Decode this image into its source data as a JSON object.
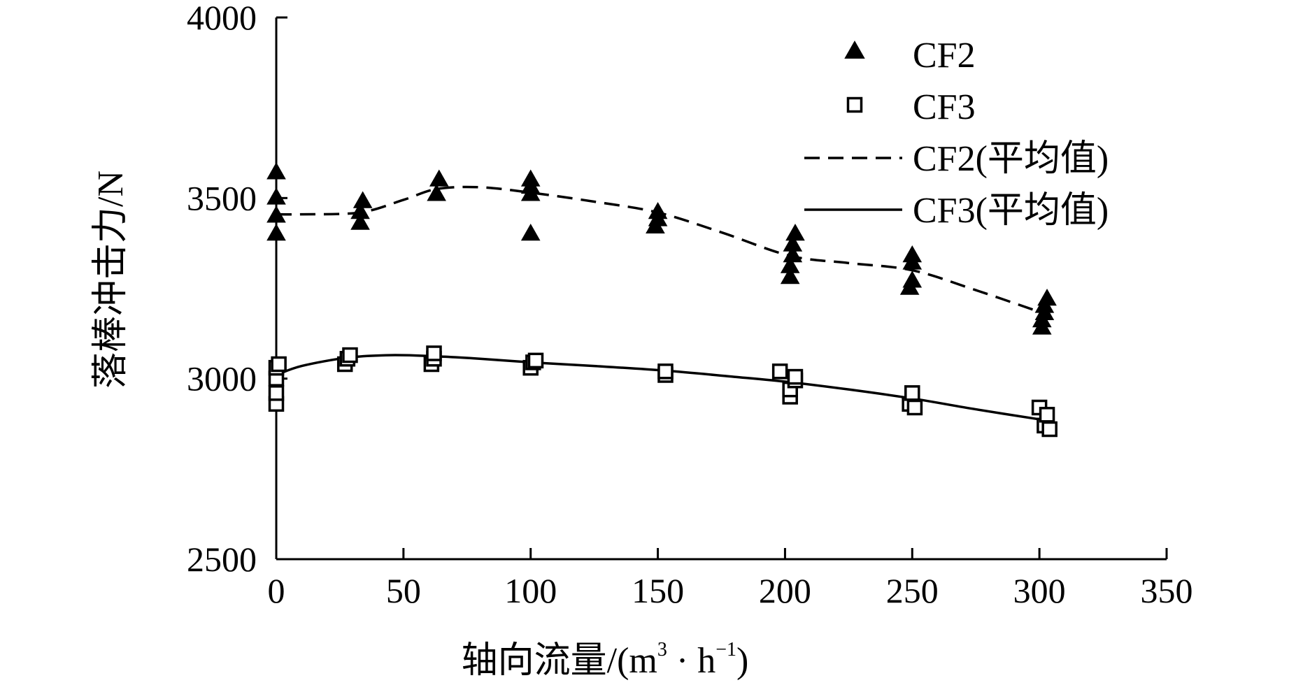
{
  "chart_data": {
    "type": "scatter",
    "title": "",
    "xlabel": "轴向流量/(m",
    "xlabel_sup1": "3",
    "xlabel_mid": " · h",
    "xlabel_sup2": "−1",
    "xlabel_end": ")",
    "ylabel": "落棒冲击力/N",
    "xlim": [
      0,
      350
    ],
    "ylim": [
      2500,
      4000
    ],
    "xticks": [
      0,
      50,
      100,
      150,
      200,
      250,
      300,
      350
    ],
    "yticks": [
      2500,
      3000,
      3500,
      4000
    ],
    "grid": false,
    "legend_position": "top-right",
    "series": [
      {
        "name": "CF2",
        "kind": "scatter",
        "marker": "triangle",
        "points": [
          [
            0,
            3400
          ],
          [
            0,
            3450
          ],
          [
            0,
            3500
          ],
          [
            0,
            3570
          ],
          [
            33,
            3430
          ],
          [
            33,
            3460
          ],
          [
            34,
            3490
          ],
          [
            63,
            3510
          ],
          [
            64,
            3550
          ],
          [
            100,
            3400
          ],
          [
            100,
            3510
          ],
          [
            100,
            3530
          ],
          [
            100,
            3550
          ],
          [
            149,
            3420
          ],
          [
            150,
            3440
          ],
          [
            150,
            3460
          ],
          [
            202,
            3280
          ],
          [
            202,
            3310
          ],
          [
            203,
            3340
          ],
          [
            203,
            3370
          ],
          [
            204,
            3400
          ],
          [
            249,
            3250
          ],
          [
            250,
            3270
          ],
          [
            250,
            3320
          ],
          [
            250,
            3340
          ],
          [
            301,
            3140
          ],
          [
            301,
            3160
          ],
          [
            302,
            3180
          ],
          [
            302,
            3200
          ],
          [
            303,
            3220
          ]
        ]
      },
      {
        "name": "CF3",
        "kind": "scatter",
        "marker": "square-open",
        "points": [
          [
            0,
            2930
          ],
          [
            0,
            2960
          ],
          [
            0,
            3000
          ],
          [
            0,
            3030
          ],
          [
            1,
            3040
          ],
          [
            27,
            3040
          ],
          [
            28,
            3055
          ],
          [
            29,
            3065
          ],
          [
            61,
            3040
          ],
          [
            62,
            3055
          ],
          [
            62,
            3070
          ],
          [
            100,
            3030
          ],
          [
            101,
            3045
          ],
          [
            102,
            3050
          ],
          [
            153,
            3010
          ],
          [
            153,
            3020
          ],
          [
            198,
            3020
          ],
          [
            202,
            2950
          ],
          [
            202,
            2970
          ],
          [
            204,
            2995
          ],
          [
            204,
            3005
          ],
          [
            249,
            2930
          ],
          [
            250,
            2960
          ],
          [
            251,
            2920
          ],
          [
            300,
            2920
          ],
          [
            302,
            2870
          ],
          [
            303,
            2900
          ],
          [
            304,
            2860
          ]
        ]
      },
      {
        "name": "CF2(平均值)",
        "kind": "line",
        "style": "dashed",
        "points": [
          [
            0,
            3455
          ],
          [
            10,
            3455
          ],
          [
            33,
            3460
          ],
          [
            50,
            3495
          ],
          [
            63,
            3525
          ],
          [
            80,
            3530
          ],
          [
            100,
            3515
          ],
          [
            125,
            3490
          ],
          [
            150,
            3460
          ],
          [
            175,
            3405
          ],
          [
            202,
            3340
          ],
          [
            225,
            3320
          ],
          [
            250,
            3300
          ],
          [
            275,
            3245
          ],
          [
            302,
            3180
          ]
        ]
      },
      {
        "name": "CF3(平均值)",
        "kind": "line",
        "style": "solid",
        "points": [
          [
            0,
            3010
          ],
          [
            10,
            3035
          ],
          [
            28,
            3058
          ],
          [
            45,
            3065
          ],
          [
            62,
            3062
          ],
          [
            80,
            3055
          ],
          [
            100,
            3045
          ],
          [
            125,
            3035
          ],
          [
            153,
            3022
          ],
          [
            180,
            3005
          ],
          [
            202,
            2990
          ],
          [
            225,
            2970
          ],
          [
            250,
            2945
          ],
          [
            275,
            2915
          ],
          [
            302,
            2885
          ]
        ]
      }
    ]
  }
}
